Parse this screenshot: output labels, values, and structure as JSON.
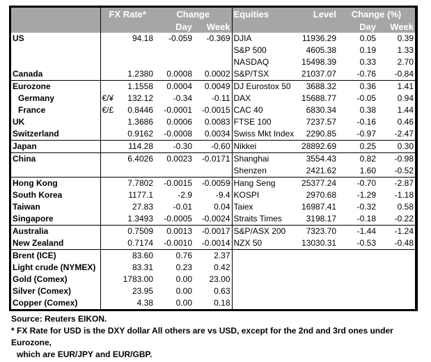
{
  "header": {
    "fx_rate": "FX Rate*",
    "change": "Change",
    "day": "Day",
    "week": "Week",
    "equities": "Equities",
    "level": "Level",
    "change_pct": "Change (%)"
  },
  "groups": [
    {
      "rows": [
        {
          "country": "US",
          "pair": "",
          "rate": "94.18",
          "day": "-0.059",
          "week": "-0.369",
          "eq": "DJIA",
          "level": "11936.29",
          "eday": "0.05",
          "eweek": "0.39"
        },
        {
          "country": "",
          "pair": "",
          "rate": "",
          "day": "",
          "week": "",
          "eq": "S&P 500",
          "level": "4605.38",
          "eday": "0.19",
          "eweek": "1.33"
        },
        {
          "country": "",
          "pair": "",
          "rate": "",
          "day": "",
          "week": "",
          "eq": "NASDAQ",
          "level": "15498.39",
          "eday": "0.33",
          "eweek": "2.70"
        },
        {
          "country": "Canada",
          "pair": "",
          "rate": "1.2380",
          "day": "0.0008",
          "week": "0.0002",
          "eq": "S&P/TSX",
          "level": "21037.07",
          "eday": "-0.76",
          "eweek": "-0.84"
        }
      ]
    },
    {
      "rows": [
        {
          "country": "Eurozone",
          "pair": "",
          "rate": "1.1558",
          "day": "0.0004",
          "week": "0.0049",
          "eq": "DJ Eurostox 50",
          "level": "3688.32",
          "eday": "0.36",
          "eweek": "1.41"
        },
        {
          "country": "Germany",
          "indent": true,
          "pair": "€/¥",
          "rate": "132.12",
          "day": "-0.34",
          "week": "-0.11",
          "eq": "DAX",
          "level": "15688.77",
          "eday": "-0.05",
          "eweek": "0.94"
        },
        {
          "country": "France",
          "indent": true,
          "pair": "€/£",
          "rate": "0.8446",
          "day": "-0.0001",
          "week": "-0.0015",
          "eq": "CAC 40",
          "level": "6830.34",
          "eday": "0.38",
          "eweek": "1.44"
        },
        {
          "country": "UK",
          "pair": "",
          "rate": "1.3686",
          "day": "0.0006",
          "week": "0.0083",
          "eq": "FTSE 100",
          "level": "7237.57",
          "eday": "-0.16",
          "eweek": "0.46"
        },
        {
          "country": "Switzerland",
          "pair": "",
          "rate": "0.9162",
          "day": "-0.0008",
          "week": "0.0034",
          "eq": "Swiss Mkt Index",
          "level": "2290.85",
          "eday": "-0.97",
          "eweek": "-2.47"
        }
      ]
    },
    {
      "rows": [
        {
          "country": "Japan",
          "pair": "",
          "rate": "114.28",
          "day": "-0.30",
          "week": "-0.60",
          "eq": "Nikkei",
          "level": "28892.69",
          "eday": "0.25",
          "eweek": "0.30"
        }
      ]
    },
    {
      "rows": [
        {
          "country": "China",
          "pair": "",
          "rate": "6.4026",
          "day": "0.0023",
          "week": "-0.0171",
          "eq": "Shanghai",
          "level": "3554.43",
          "eday": "0.82",
          "eweek": "-0.98"
        },
        {
          "country": "",
          "pair": "",
          "rate": "",
          "day": "",
          "week": "",
          "eq": "Shenzen",
          "level": "2421.62",
          "eday": "1.60",
          "eweek": "-0.52"
        }
      ]
    },
    {
      "rows": [
        {
          "country": "Hong Kong",
          "pair": "",
          "rate": "7.7802",
          "day": "-0.0015",
          "week": "-0.0059",
          "eq": "Hang Seng",
          "level": "25377.24",
          "eday": "-0.70",
          "eweek": "-2.87"
        },
        {
          "country": "South Korea",
          "pair": "",
          "rate": "1177.1",
          "day": "-2.9",
          "week": "-9.4",
          "eq": "KOSPI",
          "level": "2970.68",
          "eday": "-1.29",
          "eweek": "-1.18"
        },
        {
          "country": "Taiwan",
          "pair": "",
          "rate": "27.83",
          "day": "-0.01",
          "week": "0.04",
          "eq": "Taiex",
          "level": "16987.41",
          "eday": "-0.32",
          "eweek": "0.58"
        },
        {
          "country": "Singapore",
          "pair": "",
          "rate": "1.3493",
          "day": "-0.0005",
          "week": "-0.0024",
          "eq": "Straits Times",
          "level": "3198.17",
          "eday": "-0.18",
          "eweek": "-0.22"
        }
      ]
    },
    {
      "rows": [
        {
          "country": "Australia",
          "pair": "",
          "rate": "0.7509",
          "day": "0.0013",
          "week": "-0.0017",
          "eq": "S&P/ASX  200",
          "level": "7323.70",
          "eday": "-1.44",
          "eweek": "-1.24"
        },
        {
          "country": "New Zealand",
          "pair": "",
          "rate": "0.7174",
          "day": "-0.0010",
          "week": "-0.0014",
          "eq": "NZX 50",
          "level": "13030.31",
          "eday": "-0.53",
          "eweek": "-0.48"
        }
      ]
    },
    {
      "rows": [
        {
          "country": "Brent (ICE)",
          "pair": "",
          "rate": "83.60",
          "day": "0.76",
          "week": "2.37",
          "eq": "",
          "level": "",
          "eday": "",
          "eweek": ""
        },
        {
          "country": "Light crude (NYMEX)",
          "pair": "",
          "rate": "83.31",
          "day": "0.23",
          "week": "0.42",
          "eq": "",
          "level": "",
          "eday": "",
          "eweek": ""
        },
        {
          "country": "Gold (Comex)",
          "pair": "",
          "rate": "1783.00",
          "day": "0.00",
          "week": "23.00",
          "eq": "",
          "level": "",
          "eday": "",
          "eweek": ""
        },
        {
          "country": "Silver (Comex)",
          "pair": "",
          "rate": "23.95",
          "day": "0.00",
          "week": "0.63",
          "eq": "",
          "level": "",
          "eday": "",
          "eweek": ""
        },
        {
          "country": "Copper (Comex)",
          "pair": "",
          "rate": "4.38",
          "day": "0.00",
          "week": "0.18",
          "eq": "",
          "level": "",
          "eday": "",
          "eweek": ""
        }
      ]
    }
  ],
  "footer": {
    "source": "Source:  Reuters EIKON.",
    "note1": "* FX Rate for USD is the DXY dollar  All others are vs USD, except for the 2nd and 3rd ones under Eurozone,",
    "note2": "which are EUR/JPY and EUR/GBP."
  }
}
